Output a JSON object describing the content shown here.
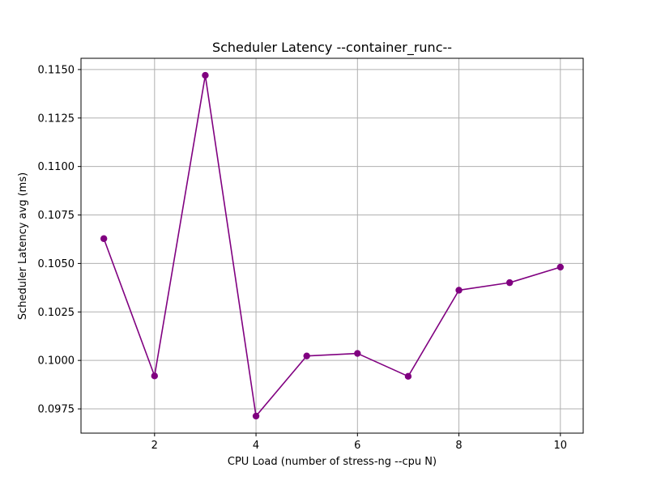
{
  "chart_data": {
    "type": "line",
    "title": "Scheduler Latency --container_runc--",
    "xlabel": "CPU Load (number of stress-ng --cpu N)",
    "ylabel": "Scheduler Latency avg (ms)",
    "x": [
      1,
      2,
      3,
      4,
      5,
      6,
      7,
      8,
      9,
      10
    ],
    "series": [
      {
        "values": [
          0.10628,
          0.0992,
          0.1147,
          0.09713,
          0.10023,
          0.10036,
          0.09918,
          0.10362,
          0.10401,
          0.10481
        ],
        "color": "#800080",
        "marker": "circle"
      }
    ],
    "xlim": [
      0.55,
      10.45
    ],
    "ylim": [
      0.09625,
      0.11558
    ],
    "xticks": [
      2,
      4,
      6,
      8,
      10
    ],
    "xtick_labels": [
      "2",
      "4",
      "6",
      "8",
      "10"
    ],
    "yticks": [
      0.0975,
      0.1,
      0.1025,
      0.105,
      0.1075,
      0.11,
      0.1125,
      0.115
    ],
    "ytick_labels": [
      "0.0975",
      "0.1000",
      "0.1025",
      "0.1050",
      "0.1075",
      "0.1100",
      "0.1125",
      "0.1150"
    ],
    "grid": true,
    "grid_color": "#b0b0b0",
    "legend": false
  }
}
